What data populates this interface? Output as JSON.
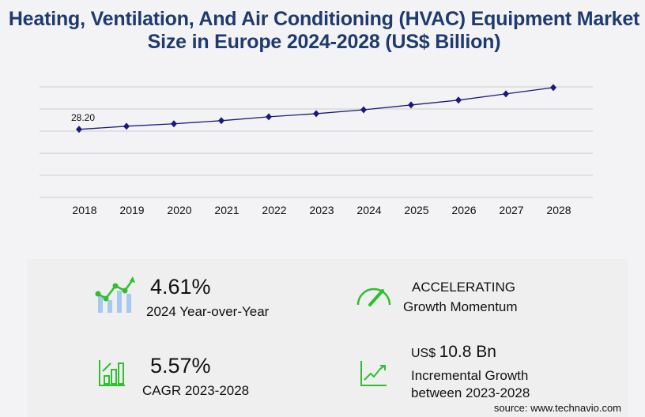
{
  "title": "Heating, Ventilation, And Air Conditioning (HVAC) Equipment Market Size in Europe 2024-2028 (US$ Billion)",
  "chart_data": {
    "type": "line",
    "categories": [
      "2018",
      "2019",
      "2020",
      "2021",
      "2022",
      "2023",
      "2024",
      "2025",
      "2026",
      "2027",
      "2028"
    ],
    "values": [
      28.2,
      29.5,
      30.5,
      31.8,
      33.4,
      34.7,
      36.3,
      38.3,
      40.3,
      42.9,
      45.5
    ],
    "data_labels": {
      "2018": "28.20"
    },
    "ylim": [
      0,
      45.8
    ],
    "grid": true,
    "line_color": "#1a1a7a"
  },
  "stats": {
    "yoy_value": "4.61%",
    "yoy_label": "2024 Year-over-Year",
    "momentum_value": "ACCELERATING",
    "momentum_label": "Growth Momentum",
    "cagr_value": "5.57%",
    "cagr_label": "CAGR 2023-2028",
    "incr_prefix": "US$",
    "incr_value": "10.8 Bn",
    "incr_label1": "Incremental Growth",
    "incr_label2": "between 2023-2028"
  },
  "source": "source: www.technavio.com",
  "colors": {
    "title": "#1e3a6e",
    "accent": "#2ec02e",
    "bar": "#a9c8f0"
  }
}
